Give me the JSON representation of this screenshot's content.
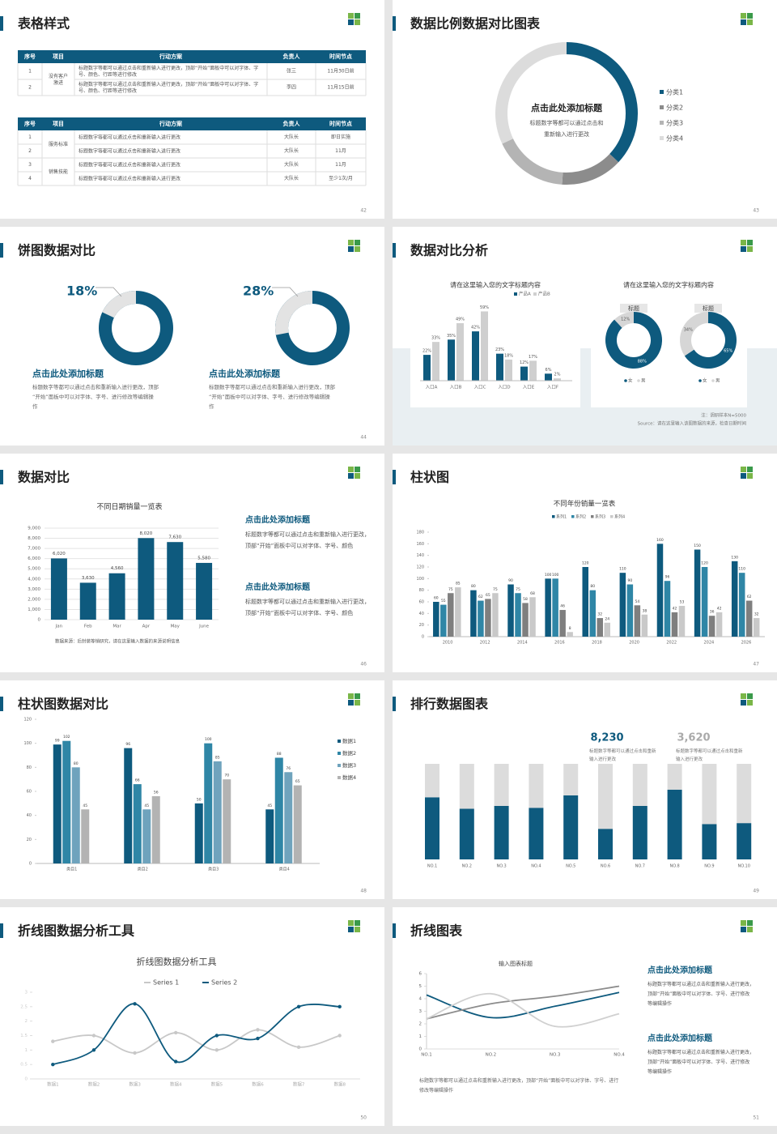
{
  "slides": [
    {
      "title": "表格样式",
      "page": "42",
      "tables": [
        {
          "header": [
            "序号",
            "项目",
            "行动方案",
            "负责人",
            "时间节点"
          ],
          "groups": [
            {
              "project": "没有客户激进",
              "rows": [
                [
                  "1",
                  "标题数字等都可以通过点击和重新输入进行更改，顶部“开始”面板中可以对字体、字号、颜色、行距等进行修改",
                  "张三",
                  "11月30日前"
                ],
                [
                  "2",
                  "标题数字等都可以通过点击和重新输入进行更改，顶部“开始”面板中可以对字体、字号、颜色、行距等进行修改",
                  "李四",
                  "11月15日前"
                ]
              ]
            }
          ]
        },
        {
          "header": [
            "序号",
            "项目",
            "行动方案",
            "负责人",
            "时间节点"
          ],
          "groups": [
            {
              "project": "服务标准",
              "rows": [
                [
                  "1",
                  "标题数字等都可以通过点击和重新输入进行更改",
                  "大队长",
                  "即日实施"
                ],
                [
                  "2",
                  "标题数字等都可以通过点击和重新输入进行更改",
                  "大队长",
                  "11月"
                ]
              ]
            },
            {
              "project": "销售技能",
              "rows": [
                [
                  "3",
                  "标题数字等都可以通过点击和重新输入进行更改",
                  "大队长",
                  "11月"
                ],
                [
                  "4",
                  "标题数字等都可以通过点击和重新输入进行更改",
                  "大队长",
                  "至少1次/月"
                ]
              ]
            }
          ]
        }
      ]
    },
    {
      "title": "数据比例数据对比图表",
      "page": "43",
      "center_title": "点击此处添加标题",
      "center_text": [
        "标题数字等都可以通过点击和",
        "重新输入进行更改"
      ],
      "categories": [
        "分类1",
        "分类2",
        "分类3",
        "分类4"
      ],
      "values": [
        37,
        14,
        17,
        32
      ],
      "colors": [
        "#0e5a7e",
        "#8c8c8c",
        "#b4b4b4",
        "#dcdcdc"
      ]
    },
    {
      "title": "饼图数据对比",
      "page": "44",
      "donuts": [
        {
          "value": 18,
          "value_label": "18%",
          "headline": "点击此处添加标题",
          "text": "标题数字等都可以通过点击和重新输入进行更改，顶部“开始”面板中可以对字体、字号、进行修改等编辑操作"
        },
        {
          "value": 28,
          "value_label": "28%",
          "headline": "点击此处添加标题",
          "text": "标题数字等都可以通过点击和重新输入进行更改，顶部“开始”面板中可以对字体、字号、进行修改等编辑操作"
        }
      ]
    },
    {
      "title": "数据对比分析",
      "page": "45",
      "bar_card": {
        "title": "请在这里输入您的文字标题内容",
        "categories": [
          "入口A",
          "入口B",
          "入口C",
          "入口D",
          "入口E",
          "入口F"
        ],
        "series": [
          {
            "name": "产品A",
            "color": "#0e5a7e",
            "values": [
              22,
              35,
              42,
              23,
              12,
              6
            ],
            "value_labels": [
              "22%",
              "35%",
              "42%",
              "23%",
              "12%",
              "6%"
            ]
          },
          {
            "name": "产品B",
            "color": "#cfcfcf",
            "values": [
              33,
              49,
              59,
              18,
              17,
              2
            ],
            "value_labels": [
              "33%",
              "49%",
              "59%",
              "18%",
              "17%",
              "2%"
            ]
          }
        ]
      },
      "donut_card": {
        "title": "请在这里输入您的文字标题内容",
        "colors": [
          "#0e5a7e",
          "#d6d6d6"
        ],
        "donuts": [
          {
            "label": "标题",
            "categories": [
              "女",
              "男"
            ],
            "values": [
              88,
              12
            ],
            "value_labels": [
              "88%",
              "12%"
            ]
          },
          {
            "label": "标题",
            "categories": [
              "女",
              "男"
            ],
            "values": [
              65,
              34
            ],
            "value_labels": [
              "65%",
              "34%"
            ]
          }
        ]
      },
      "note": "注：调研样本N=5000",
      "source": "Source：请在这里输入该图数据的来源，检查日期时间"
    },
    {
      "title": "数据对比",
      "page": "46",
      "chart_title": "不同日期销量一览表",
      "categories": [
        "Jan",
        "Feb",
        "Mar",
        "Apr",
        "May",
        "June"
      ],
      "values": [
        6020,
        3630,
        4560,
        8020,
        7630,
        5580
      ],
      "value_labels": [
        "6,020",
        "3,630",
        "4,560",
        "8,020",
        "7,630",
        "5,580"
      ],
      "color": "#0e5a7e",
      "ylim": [
        0,
        9000
      ],
      "yticks": [
        0,
        {
          "value": 1000,
          "label": "1,000"
        },
        {
          "value": 2000,
          "label": "2,000"
        },
        {
          "value": 3000,
          "label": "3,000"
        },
        {
          "value": 4000,
          "label": "4,000"
        },
        {
          "value": 5000,
          "label": "5,000"
        },
        {
          "value": 6000,
          "label": "6,000"
        },
        {
          "value": 7000,
          "label": "7,000"
        },
        {
          "value": 8000,
          "label": "8,000"
        },
        {
          "value": 9000,
          "label": "9,000"
        }
      ],
      "note": "数据来源：后封装等销研究，请在这里输入数据的来源说明信息",
      "blocks": [
        {
          "headline": "点击此处添加标题",
          "text": "标题数字等都可以通过点击和重新输入进行更改，顶部“开始”面板中可以对字体、字号、颜色"
        },
        {
          "headline": "点击此处添加标题",
          "text": "标题数字等都可以通过点击和重新输入进行更改，顶部“开始”面板中可以对字体、字号、颜色"
        }
      ]
    },
    {
      "title": "柱状图",
      "page": "47",
      "chart_title": "不同年份销量一览表",
      "categories": [
        "2010",
        "2012",
        "2014",
        "2016",
        "2018",
        "2020",
        "2022",
        "2024",
        "2026"
      ],
      "series": [
        {
          "name": "系列1",
          "color": "#0e5a7e",
          "values": [
            60,
            80,
            90,
            100,
            120,
            110,
            160,
            150,
            130
          ]
        },
        {
          "name": "系列2",
          "color": "#2f86a6",
          "values": [
            55,
            62,
            75,
            100,
            80,
            90,
            96,
            120,
            110
          ]
        },
        {
          "name": "系列3",
          "color": "#7f7f7f",
          "values": [
            75,
            65,
            58,
            46,
            32,
            54,
            42,
            36,
            62
          ]
        },
        {
          "name": "系列4",
          "color": "#c9c9c9",
          "values": [
            85,
            75,
            68,
            8,
            24,
            38,
            53,
            42,
            32
          ]
        }
      ],
      "ylim": [
        0,
        180
      ],
      "yticks": [
        0,
        20,
        40,
        60,
        80,
        100,
        120,
        140,
        160,
        180
      ]
    },
    {
      "title": "柱状图数据对比",
      "page": "48",
      "categories": [
        "类目1",
        "类目2",
        "类目3",
        "类目4"
      ],
      "series": [
        {
          "name": "数据1",
          "color": "#0e5a7e",
          "values": [
            99,
            96,
            50,
            45
          ]
        },
        {
          "name": "数据2",
          "color": "#2f86a6",
          "values": [
            102,
            66,
            100,
            88
          ]
        },
        {
          "name": "数据3",
          "color": "#6fa3bd",
          "values": [
            80,
            45,
            85,
            76
          ]
        },
        {
          "name": "数据4",
          "color": "#b3b3b3",
          "values": [
            45,
            56,
            70,
            65
          ]
        }
      ],
      "ylim": [
        0,
        120
      ],
      "yticks": [
        0,
        20,
        40,
        60,
        80,
        100,
        120
      ]
    },
    {
      "title": "排行数据图表",
      "page": "49",
      "stats": [
        {
          "value": "8,230",
          "text": "标题数字等都可以通过点击和重新输入进行更改"
        },
        {
          "value": "3,620",
          "text": "标题数字等都可以通过点击和重新输入进行更改"
        }
      ],
      "categories": [
        "NO.1",
        "NO.2",
        "NO.3",
        "NO.4",
        "NO.5",
        "NO.6",
        "NO.7",
        "NO.8",
        "NO.9",
        "NO.10"
      ],
      "series": [
        {
          "color": "#0e5a7e",
          "values": [
            65,
            53,
            56,
            54,
            67,
            32,
            56,
            73,
            37,
            38
          ]
        },
        {
          "color": "#dcdcdc",
          "values": [
            35,
            47,
            44,
            46,
            33,
            68,
            44,
            27,
            63,
            62
          ]
        }
      ]
    },
    {
      "title": "折线图数据分析工具",
      "page": "50",
      "chart_title": "折线图数据分析工具",
      "categories": [
        "数据1",
        "数据2",
        "数据3",
        "数据4",
        "数据5",
        "数据6",
        "数据7",
        "数据8"
      ],
      "series": [
        {
          "name": "Series 1",
          "color": "#c8c8c8",
          "values": [
            1.3,
            1.5,
            0.9,
            1.6,
            1,
            1.7,
            1.1,
            1.5
          ]
        },
        {
          "name": "Series 2",
          "color": "#0e5a7e",
          "values": [
            0.5,
            1,
            2.6,
            0.6,
            1.5,
            1.4,
            2.5,
            2.5
          ]
        }
      ],
      "ylim": [
        0,
        3
      ],
      "yticks": [
        0,
        0.5,
        1,
        1.5,
        2,
        2.5,
        3
      ]
    },
    {
      "title": "折线图表",
      "page": "51",
      "chart_title": "输入图表标题",
      "categories": [
        "NO.1",
        "NO.2",
        "NO.3",
        "NO.4"
      ],
      "series": [
        {
          "color": "#0e5a7e",
          "values": [
            4.3,
            2.5,
            3.4,
            4.5
          ]
        },
        {
          "color": "#8c8c8c",
          "values": [
            2.4,
            3.6,
            4.2,
            5
          ]
        },
        {
          "color": "#d0d0d0",
          "values": [
            2.4,
            4.4,
            1.8,
            2.8
          ]
        }
      ],
      "ylim": [
        0,
        6
      ],
      "yticks": [
        0,
        1,
        2,
        3,
        4,
        5,
        6
      ],
      "note": "标题数字等都可以通过点击和重新输入进行更改，顶部“开始”面板中可以对字体、字号、进行修改等编辑操作",
      "blocks": [
        {
          "headline": "点击此处添加标题",
          "text": "标题数字等都可以通过点击和重新输入进行更改，顶部“开始”面板中可以对字体、字号、进行修改等编辑操作"
        },
        {
          "headline": "点击此处添加标题",
          "text": "标题数字等都可以通过点击和重新输入进行更改，顶部“开始”面板中可以对字体、字号、进行修改等编辑操作"
        }
      ]
    }
  ]
}
